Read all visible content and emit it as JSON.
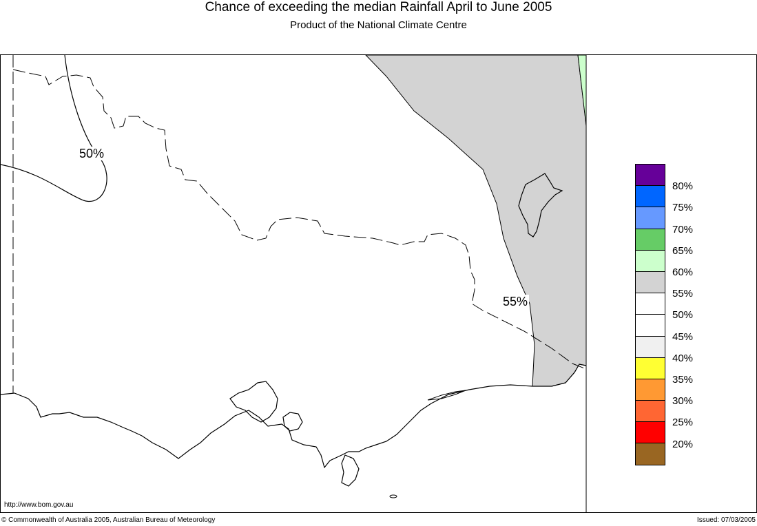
{
  "header": {
    "title": "Chance of exceeding the median Rainfall April to June 2005",
    "subtitle": "Product of the National Climate Centre"
  },
  "map": {
    "contour_labels": [
      "50%",
      "55%"
    ],
    "colors": {
      "above_55": "#d3d3d3",
      "above_60": "#ccffcc",
      "land": "#ffffff",
      "outline": "#000000"
    }
  },
  "legend": {
    "items": [
      {
        "label": "80%",
        "color": "#660099"
      },
      {
        "label": "75%",
        "color": "#0066ff"
      },
      {
        "label": "70%",
        "color": "#6699ff"
      },
      {
        "label": "65%",
        "color": "#66cc66"
      },
      {
        "label": "60%",
        "color": "#ccffcc"
      },
      {
        "label": "55%",
        "color": "#d3d3d3"
      },
      {
        "label": "50%",
        "color": "#ffffff"
      },
      {
        "label": "45%",
        "color": "#ffffff"
      },
      {
        "label": "40%",
        "color": "#f0f0f0"
      },
      {
        "label": "35%",
        "color": "#ffff33"
      },
      {
        "label": "30%",
        "color": "#ff9933"
      },
      {
        "label": "25%",
        "color": "#ff6633"
      },
      {
        "label": "20%",
        "color": "#ff0000"
      },
      {
        "label": "",
        "color": "#996622"
      }
    ]
  },
  "footer": {
    "url": "http://www.bom.gov.au",
    "copyright": "© Commonwealth of Australia 2005, Australian Bureau of Meteorology",
    "issued": "Issued: 07/03/2005"
  }
}
